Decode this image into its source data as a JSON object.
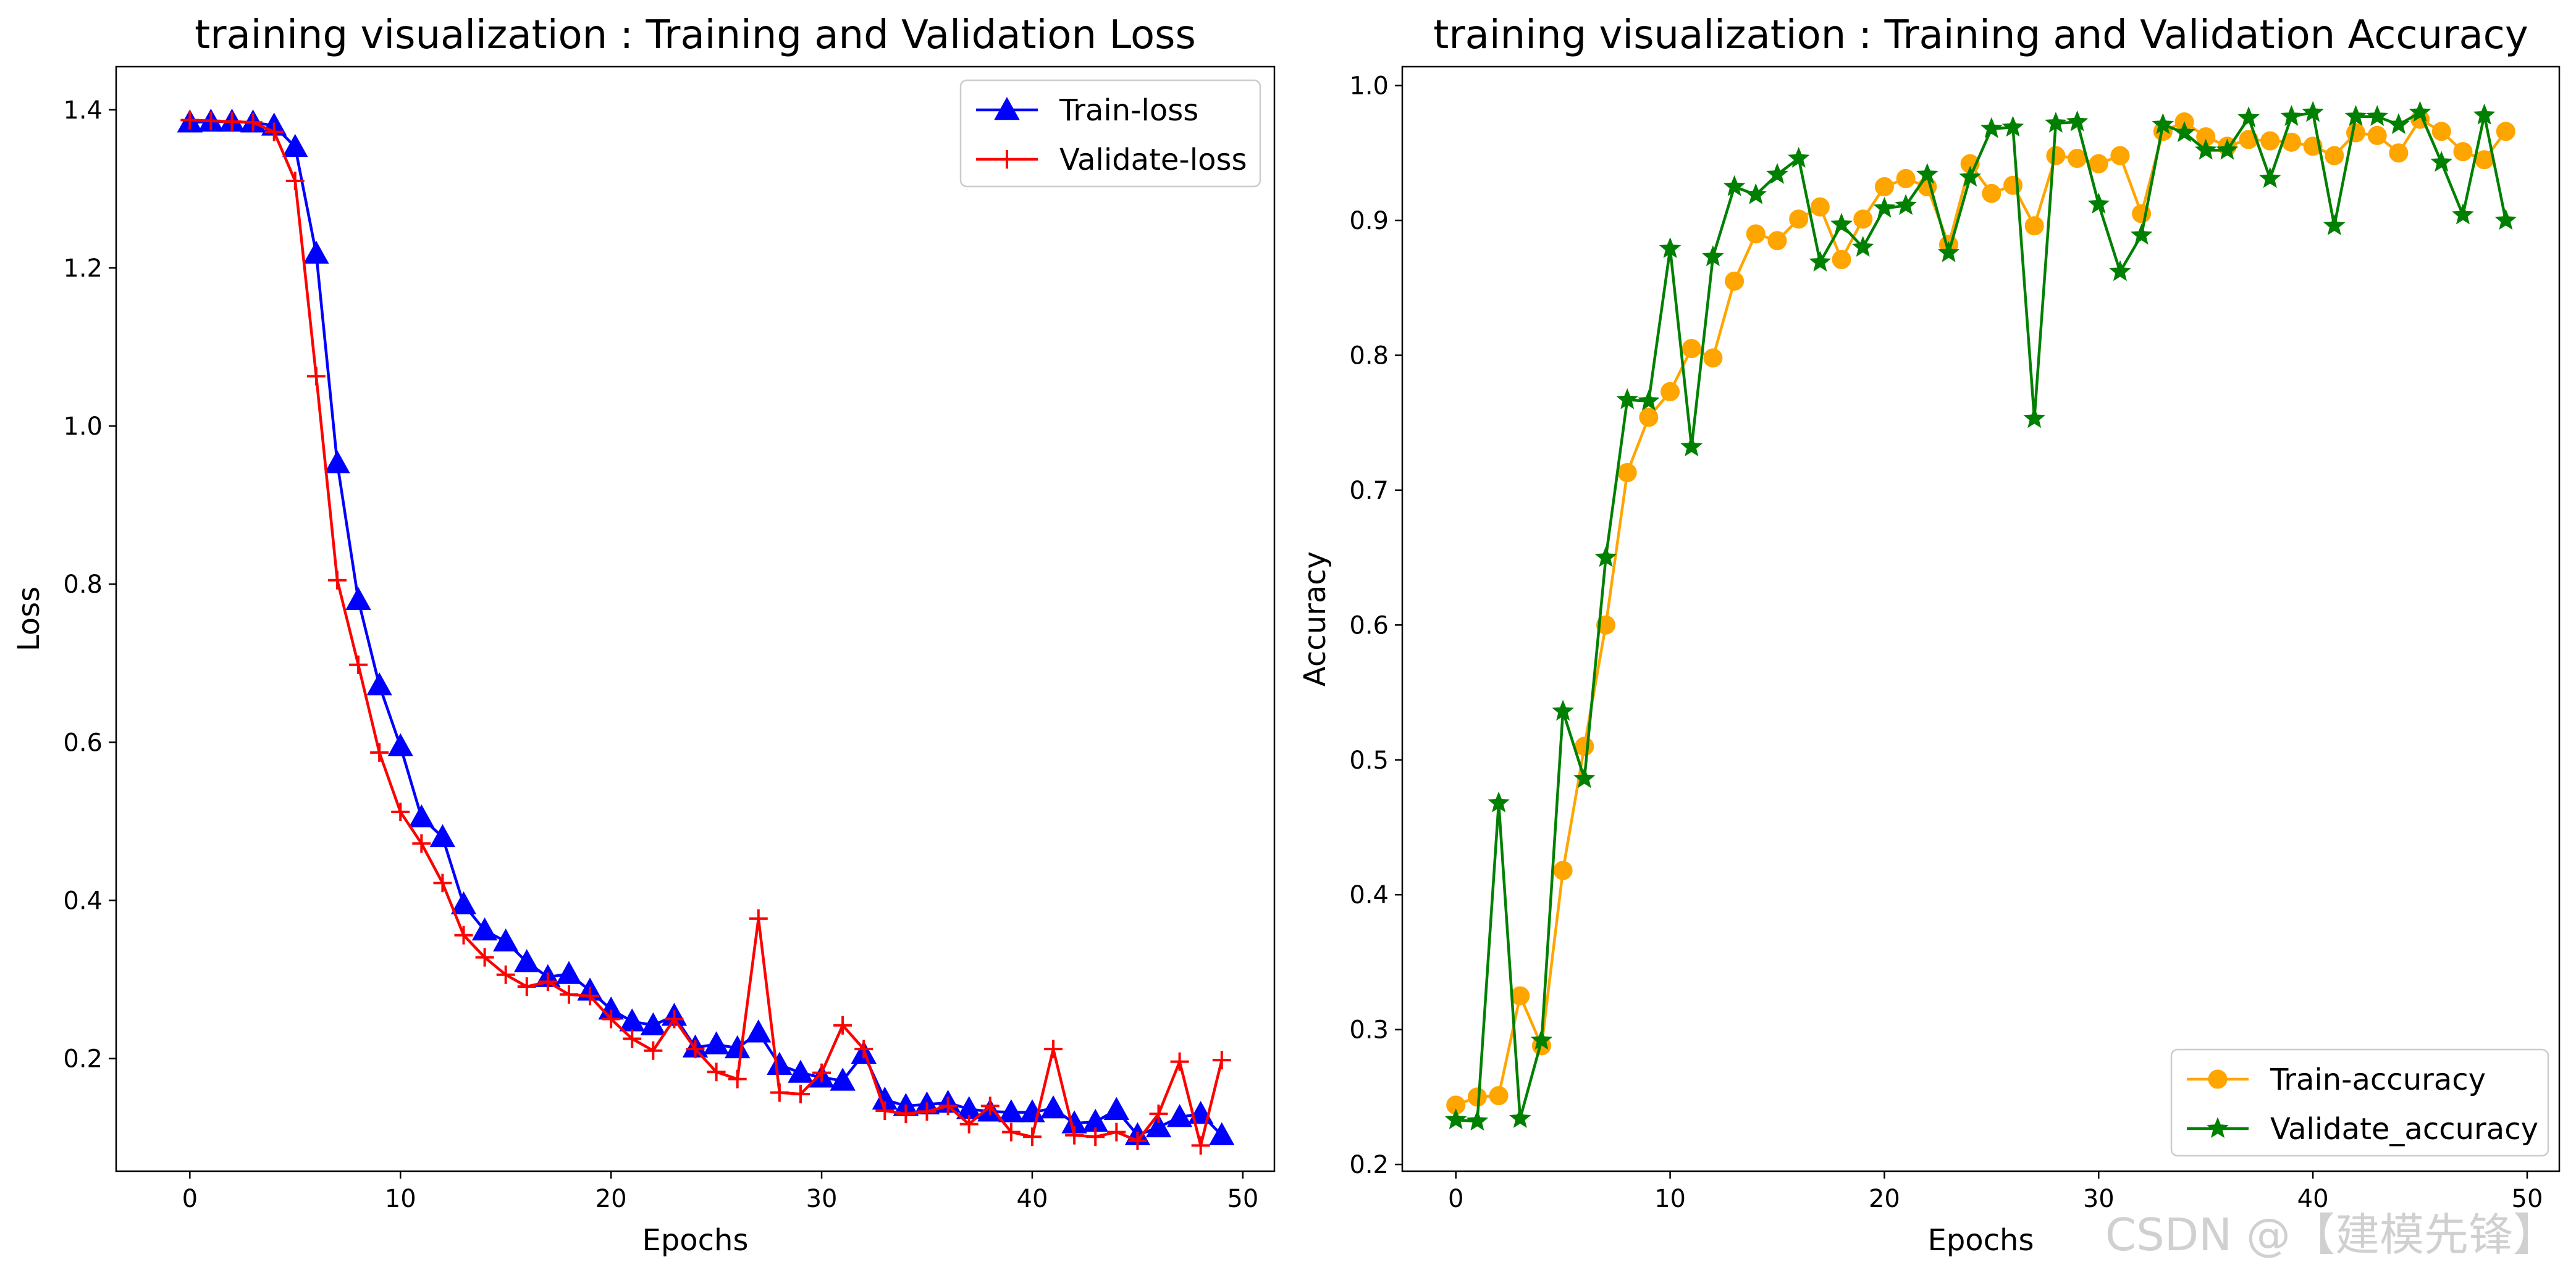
{
  "chart_data": [
    {
      "type": "line",
      "title": "training visualization : Training and Validation Loss",
      "xlabel": "Epochs",
      "ylabel": "Loss",
      "xlim": [
        -3.5,
        51.5
      ],
      "ylim": [
        0.0575,
        1.4545
      ],
      "xticks": [
        "0",
        "10",
        "20",
        "30",
        "40",
        "50"
      ],
      "yticks": [
        "0.2",
        "0.4",
        "0.6",
        "0.8",
        "1.0",
        "1.2",
        "1.4"
      ],
      "grid": false,
      "legend_position": "top-right",
      "x": [
        0,
        1,
        2,
        3,
        4,
        5,
        6,
        7,
        8,
        9,
        10,
        11,
        12,
        13,
        14,
        15,
        16,
        17,
        18,
        19,
        20,
        21,
        22,
        23,
        24,
        25,
        26,
        27,
        28,
        29,
        30,
        31,
        32,
        33,
        34,
        35,
        36,
        37,
        38,
        39,
        40,
        41,
        42,
        43,
        44,
        45,
        46,
        47,
        48,
        49
      ],
      "series": [
        {
          "name": "Train-loss",
          "color": "#0000ff",
          "marker": "triangle",
          "values": [
            1.384,
            1.385,
            1.385,
            1.384,
            1.38,
            1.353,
            1.218,
            0.953,
            0.78,
            0.672,
            0.595,
            0.505,
            0.48,
            0.395,
            0.362,
            0.348,
            0.322,
            0.303,
            0.307,
            0.286,
            0.262,
            0.247,
            0.242,
            0.254,
            0.214,
            0.218,
            0.213,
            0.233,
            0.192,
            0.182,
            0.176,
            0.172,
            0.206,
            0.148,
            0.14,
            0.142,
            0.144,
            0.136,
            0.133,
            0.132,
            0.132,
            0.137,
            0.118,
            0.12,
            0.135,
            0.103,
            0.113,
            0.126,
            0.13,
            0.103
          ]
        },
        {
          "name": "Validate-loss",
          "color": "#ff0000",
          "marker": "plus",
          "values": [
            1.387,
            1.386,
            1.385,
            1.384,
            1.372,
            1.31,
            1.063,
            0.805,
            0.698,
            0.587,
            0.512,
            0.472,
            0.422,
            0.356,
            0.328,
            0.306,
            0.291,
            0.297,
            0.281,
            0.279,
            0.25,
            0.225,
            0.21,
            0.25,
            0.212,
            0.183,
            0.174,
            0.377,
            0.157,
            0.155,
            0.182,
            0.242,
            0.212,
            0.134,
            0.13,
            0.133,
            0.14,
            0.117,
            0.14,
            0.107,
            0.101,
            0.212,
            0.103,
            0.101,
            0.107,
            0.096,
            0.13,
            0.196,
            0.09,
            0.198
          ]
        }
      ]
    },
    {
      "type": "line",
      "title": "training visualization : Training and Validation Accuracy",
      "xlabel": "Epochs",
      "ylabel": "Accuracy",
      "xlim": [
        -2.5,
        51.5
      ],
      "ylim": [
        0.195,
        1.014
      ],
      "xticks": [
        "0",
        "10",
        "20",
        "30",
        "40",
        "50"
      ],
      "yticks": [
        "0.2",
        "0.3",
        "0.4",
        "0.5",
        "0.6",
        "0.7",
        "0.8",
        "0.9",
        "1.0"
      ],
      "grid": false,
      "legend_position": "bottom-right",
      "x": [
        0,
        1,
        2,
        3,
        4,
        5,
        6,
        7,
        8,
        9,
        10,
        11,
        12,
        13,
        14,
        15,
        16,
        17,
        18,
        19,
        20,
        21,
        22,
        23,
        24,
        25,
        26,
        27,
        28,
        29,
        30,
        31,
        32,
        33,
        34,
        35,
        36,
        37,
        38,
        39,
        40,
        41,
        42,
        43,
        44,
        45,
        46,
        47,
        48,
        49
      ],
      "series": [
        {
          "name": "Train-accuracy",
          "color": "#ffa500",
          "marker": "circle",
          "values": [
            0.244,
            0.25,
            0.251,
            0.325,
            0.288,
            0.418,
            0.51,
            0.6,
            0.713,
            0.754,
            0.773,
            0.805,
            0.798,
            0.855,
            0.89,
            0.885,
            0.901,
            0.91,
            0.871,
            0.901,
            0.925,
            0.931,
            0.925,
            0.882,
            0.942,
            0.92,
            0.926,
            0.896,
            0.948,
            0.946,
            0.942,
            0.948,
            0.905,
            0.966,
            0.973,
            0.962,
            0.955,
            0.96,
            0.959,
            0.958,
            0.955,
            0.948,
            0.965,
            0.963,
            0.95,
            0.975,
            0.966,
            0.951,
            0.945,
            0.966
          ]
        },
        {
          "name": "Validate_accuracy",
          "color": "#008000",
          "marker": "star",
          "values": [
            0.233,
            0.232,
            0.468,
            0.234,
            0.292,
            0.536,
            0.486,
            0.65,
            0.767,
            0.766,
            0.879,
            0.732,
            0.873,
            0.925,
            0.919,
            0.934,
            0.946,
            0.869,
            0.897,
            0.88,
            0.909,
            0.911,
            0.934,
            0.876,
            0.932,
            0.968,
            0.969,
            0.753,
            0.972,
            0.973,
            0.912,
            0.862,
            0.889,
            0.971,
            0.965,
            0.952,
            0.952,
            0.976,
            0.931,
            0.977,
            0.98,
            0.896,
            0.977,
            0.977,
            0.971,
            0.98,
            0.943,
            0.904,
            0.978,
            0.9
          ]
        }
      ]
    }
  ],
  "watermark": "CSDN @【建模先锋】"
}
